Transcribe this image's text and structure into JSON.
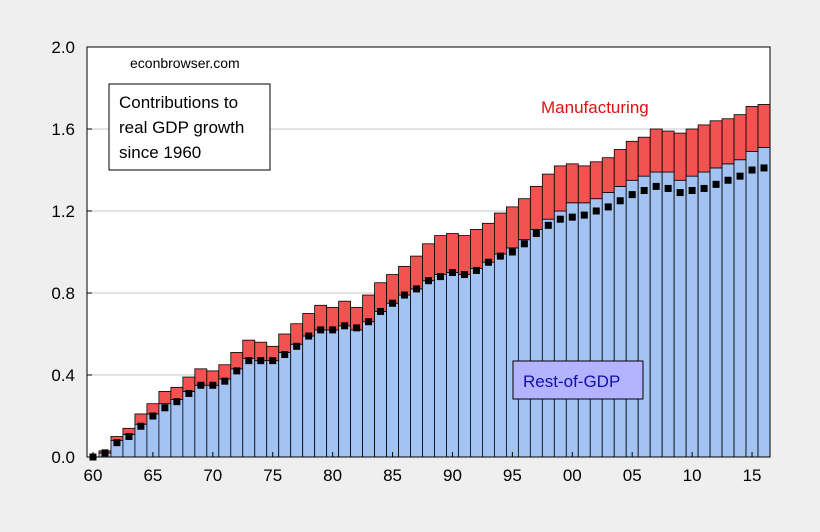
{
  "chart_data": {
    "type": "bar",
    "stacked": true,
    "grid": "horizontal",
    "x": [
      1960,
      1961,
      1962,
      1963,
      1964,
      1965,
      1966,
      1967,
      1968,
      1969,
      1970,
      1971,
      1972,
      1973,
      1974,
      1975,
      1976,
      1977,
      1978,
      1979,
      1980,
      1981,
      1982,
      1983,
      1984,
      1985,
      1986,
      1987,
      1988,
      1989,
      1990,
      1991,
      1992,
      1993,
      1994,
      1995,
      1996,
      1997,
      1998,
      1999,
      2000,
      2001,
      2002,
      2003,
      2004,
      2005,
      2006,
      2007,
      2008,
      2009,
      2010,
      2011,
      2012,
      2013,
      2014,
      2015,
      2016
    ],
    "x_tick_labels": [
      "60",
      "65",
      "70",
      "75",
      "80",
      "85",
      "90",
      "95",
      "00",
      "05",
      "10",
      "15"
    ],
    "x_tick_years": [
      1960,
      1965,
      1970,
      1975,
      1980,
      1985,
      1990,
      1995,
      2000,
      2005,
      2010,
      2015
    ],
    "ylim": [
      0.0,
      2.0
    ],
    "y_ticks": [
      "0.0",
      "0.4",
      "0.8",
      "1.2",
      "1.6",
      "2.0"
    ],
    "series": [
      {
        "name": "Rest-of-GDP",
        "color": "#a3c3f2",
        "values": [
          0.0,
          0.02,
          0.08,
          0.11,
          0.16,
          0.21,
          0.26,
          0.28,
          0.32,
          0.35,
          0.35,
          0.38,
          0.43,
          0.48,
          0.47,
          0.47,
          0.51,
          0.55,
          0.59,
          0.62,
          0.62,
          0.64,
          0.62,
          0.66,
          0.71,
          0.75,
          0.79,
          0.82,
          0.86,
          0.89,
          0.9,
          0.89,
          0.92,
          0.95,
          0.99,
          1.02,
          1.06,
          1.11,
          1.16,
          1.2,
          1.24,
          1.24,
          1.26,
          1.29,
          1.32,
          1.35,
          1.37,
          1.39,
          1.39,
          1.35,
          1.37,
          1.39,
          1.41,
          1.43,
          1.45,
          1.49,
          1.51
        ]
      },
      {
        "name": "Manufacturing",
        "color": "#f25252",
        "values": [
          0.0,
          0.01,
          0.02,
          0.03,
          0.05,
          0.05,
          0.06,
          0.06,
          0.07,
          0.08,
          0.07,
          0.07,
          0.08,
          0.09,
          0.09,
          0.07,
          0.09,
          0.1,
          0.11,
          0.12,
          0.11,
          0.12,
          0.11,
          0.13,
          0.14,
          0.14,
          0.14,
          0.16,
          0.18,
          0.19,
          0.19,
          0.19,
          0.19,
          0.19,
          0.2,
          0.2,
          0.2,
          0.21,
          0.22,
          0.22,
          0.19,
          0.18,
          0.18,
          0.17,
          0.18,
          0.19,
          0.19,
          0.21,
          0.2,
          0.23,
          0.23,
          0.23,
          0.23,
          0.22,
          0.22,
          0.22,
          0.21
        ]
      }
    ],
    "markers": [
      0.0,
      0.02,
      0.07,
      0.1,
      0.15,
      0.2,
      0.24,
      0.27,
      0.31,
      0.35,
      0.35,
      0.37,
      0.42,
      0.47,
      0.47,
      0.47,
      0.5,
      0.54,
      0.59,
      0.62,
      0.62,
      0.64,
      0.63,
      0.66,
      0.71,
      0.75,
      0.79,
      0.82,
      0.86,
      0.88,
      0.9,
      0.89,
      0.91,
      0.95,
      0.98,
      1.0,
      1.04,
      1.09,
      1.13,
      1.16,
      1.17,
      1.18,
      1.2,
      1.22,
      1.25,
      1.28,
      1.3,
      1.32,
      1.31,
      1.29,
      1.3,
      1.31,
      1.33,
      1.35,
      1.37,
      1.4,
      1.41
    ],
    "marker_color": "#000000",
    "annotations": {
      "source": "econbrowser.com",
      "legend_box": "Contributions to\nreal GDP growth\nsince 1960",
      "manufacturing_label": "Manufacturing",
      "manufacturing_color": "#e01010",
      "rest_label": "Rest-of-GDP",
      "rest_color": "#1010b0",
      "rest_box_fill": "#b3b3ff"
    }
  }
}
